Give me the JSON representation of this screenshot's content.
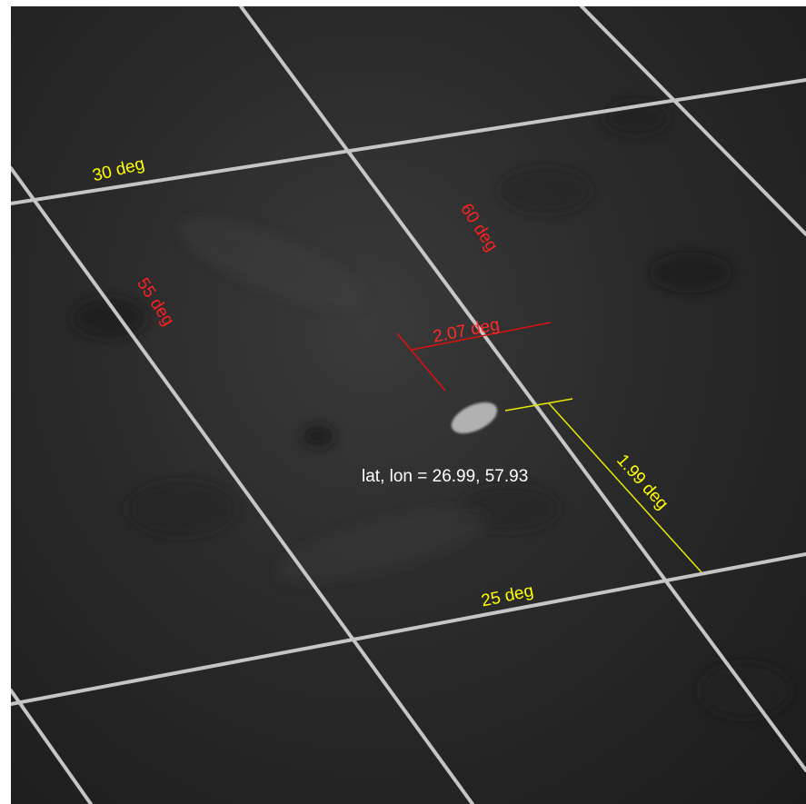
{
  "map": {
    "grid_labels": {
      "lat_30": "30 deg",
      "lat_25": "25 deg",
      "lon_55": "55 deg",
      "lon_60": "60 deg"
    },
    "measurements": {
      "width": "2.07 deg",
      "height": "1.99 deg"
    },
    "feature_readout": "lat, lon = 26.99, 57.93",
    "colors": {
      "latitude_labels": "#ffff00",
      "longitude_labels": "#ff2020",
      "width_measure": "#e01010",
      "height_measure": "#e8e800",
      "grid_lines": "#d8d8d8",
      "readout_text": "#ffffff"
    }
  }
}
